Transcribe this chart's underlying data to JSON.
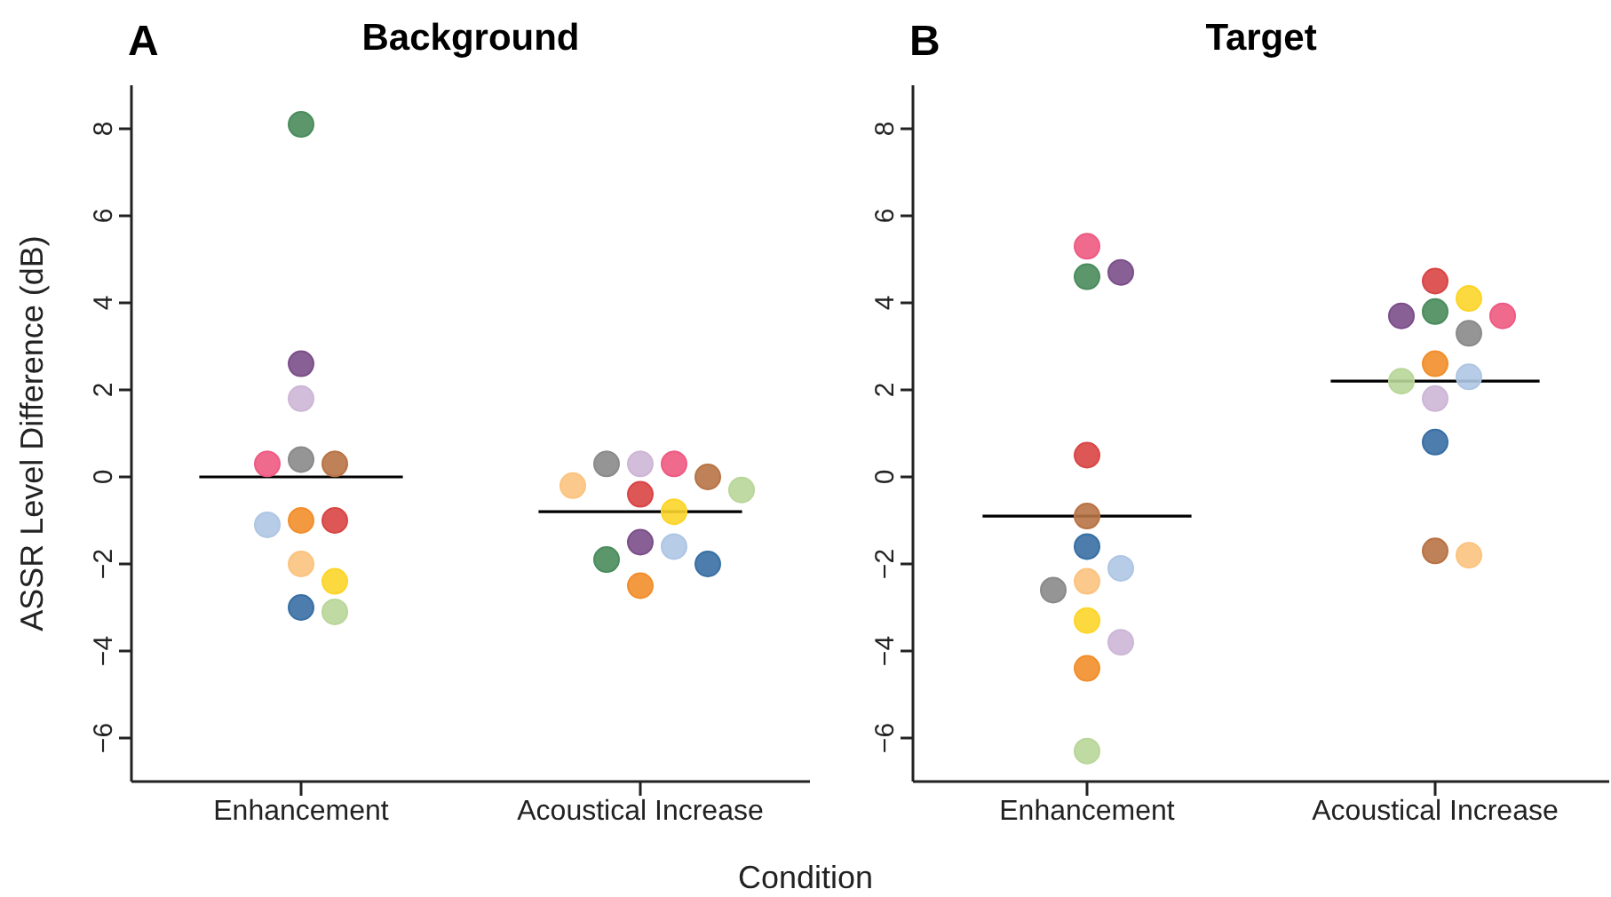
{
  "chart_data": [
    {
      "type": "scatter",
      "title": "Background",
      "ylabel": "ASSR Level Difference (dB)",
      "annotations": [
        "A"
      ],
      "categories": [
        "Enhancement",
        "Acoustical Increase"
      ],
      "ylim": [
        -7,
        9
      ],
      "yticks": [
        -6,
        -4,
        -2,
        0,
        2,
        4,
        6,
        8
      ],
      "marker": "circle",
      "series": [
        {
          "color": "#4a8c5c",
          "values": [
            8.1,
            -1.9
          ]
        },
        {
          "color": "#7b4f8a",
          "values": [
            2.6,
            -1.5
          ]
        },
        {
          "color": "#cdb6d6",
          "values": [
            1.8,
            0.3
          ]
        },
        {
          "color": "#b87345",
          "values": [
            0.3,
            0.0
          ]
        },
        {
          "color": "#ee5a82",
          "values": [
            0.3,
            0.3
          ]
        },
        {
          "color": "#8a8a8a",
          "values": [
            0.4,
            0.3
          ]
        },
        {
          "color": "#f28e2b",
          "values": [
            -1.0,
            -2.5
          ]
        },
        {
          "color": "#d94545",
          "values": [
            -1.0,
            -0.4
          ]
        },
        {
          "color": "#aec6e4",
          "values": [
            -1.1,
            -1.6
          ]
        },
        {
          "color": "#fcd52a",
          "values": [
            -2.4,
            -0.8
          ]
        },
        {
          "color": "#fbc37f",
          "values": [
            -2.0,
            -0.2
          ]
        },
        {
          "color": "#386fa4",
          "values": [
            -3.0,
            -2.0
          ]
        },
        {
          "color": "#b9d69a",
          "values": [
            -3.1,
            -0.3
          ]
        }
      ],
      "ref_lines": [
        {
          "axis": "y",
          "value": 0.0,
          "color": "#000000"
        },
        {
          "axis": "y",
          "value": -0.8,
          "color": "#000000"
        }
      ]
    },
    {
      "type": "scatter",
      "title": "Target",
      "xlabel": "Condition",
      "annotations": [
        "B"
      ],
      "categories": [
        "Enhancement",
        "Acoustical Increase"
      ],
      "ylim": [
        -7,
        9
      ],
      "yticks": [
        -6,
        -4,
        -2,
        0,
        2,
        4,
        6,
        8
      ],
      "marker": "circle",
      "series": [
        {
          "color": "#4a8c5c",
          "values": [
            4.6,
            3.8
          ]
        },
        {
          "color": "#7b4f8a",
          "values": [
            4.7,
            3.7
          ]
        },
        {
          "color": "#cdb6d6",
          "values": [
            -3.8,
            1.8
          ]
        },
        {
          "color": "#b87345",
          "values": [
            -0.9,
            -1.7
          ]
        },
        {
          "color": "#ee5a82",
          "values": [
            5.3,
            3.7
          ]
        },
        {
          "color": "#8a8a8a",
          "values": [
            -2.6,
            3.3
          ]
        },
        {
          "color": "#f28e2b",
          "values": [
            -4.4,
            2.6
          ]
        },
        {
          "color": "#d94545",
          "values": [
            0.5,
            4.5
          ]
        },
        {
          "color": "#aec6e4",
          "values": [
            -2.1,
            2.3
          ]
        },
        {
          "color": "#fcd52a",
          "values": [
            -3.3,
            4.1
          ]
        },
        {
          "color": "#fbc37f",
          "values": [
            -2.4,
            -1.8
          ]
        },
        {
          "color": "#386fa4",
          "values": [
            -1.6,
            0.8
          ]
        },
        {
          "color": "#b9d69a",
          "values": [
            -6.3,
            2.2
          ]
        }
      ],
      "ref_lines": [
        {
          "axis": "y",
          "value": -0.9,
          "color": "#000000"
        },
        {
          "axis": "y",
          "value": 2.2,
          "color": "#000000"
        }
      ]
    }
  ]
}
